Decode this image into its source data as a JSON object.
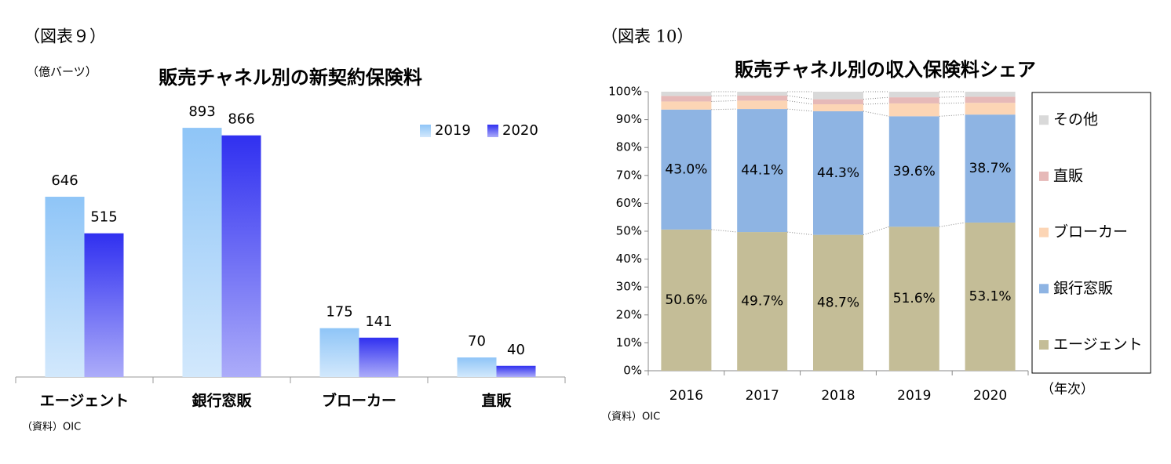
{
  "chart_data": [
    {
      "type": "bar",
      "label": "（図表９）",
      "title": "販売チャネル別の新契約保険料",
      "unit": "（億バーツ）",
      "source": "（資料）OIC",
      "categories": [
        "エージェント",
        "銀行窓販",
        "ブローカー",
        "直販"
      ],
      "series": [
        {
          "name": "2019",
          "color": "#8fc5f7",
          "values": [
            646,
            893,
            175,
            70
          ]
        },
        {
          "name": "2020",
          "color": "#3030f0",
          "values": [
            515,
            866,
            141,
            40
          ]
        }
      ],
      "ylim": [
        0,
        1000
      ]
    },
    {
      "type": "stacked-bar",
      "label": "（図表 10）",
      "title": "販売チャネル別の収入保険料シェア",
      "source": "（資料）OIC",
      "xlabel": "（年次）",
      "categories": [
        "2016",
        "2017",
        "2018",
        "2019",
        "2020"
      ],
      "series": [
        {
          "name": "エージェント",
          "color": "#c4bd97",
          "values": [
            50.6,
            49.7,
            48.7,
            51.6,
            53.1
          ],
          "value_labels": [
            "50.6%",
            "49.7%",
            "48.7%",
            "51.6%",
            "53.1%"
          ]
        },
        {
          "name": "銀行窓販",
          "color": "#8eb4e3",
          "values": [
            43.0,
            44.1,
            44.3,
            39.6,
            38.7
          ],
          "value_labels": [
            "43.0%",
            "44.1%",
            "44.3%",
            "39.6%",
            "38.7%"
          ]
        },
        {
          "name": "ブローカー",
          "color": "#fcd5b5",
          "values": [
            2.9,
            3.0,
            2.5,
            4.6,
            4.2
          ]
        },
        {
          "name": "直販",
          "color": "#e6b9b8",
          "values": [
            2.0,
            1.8,
            1.8,
            2.2,
            2.2
          ]
        },
        {
          "name": "その他",
          "color": "#d9d9d9",
          "values": [
            1.5,
            1.4,
            2.7,
            2.0,
            1.8
          ]
        }
      ],
      "ylim": [
        0,
        100
      ],
      "yticks": [
        {
          "value": 0,
          "label": "0%"
        },
        {
          "value": 10,
          "label": "10%"
        },
        {
          "value": 20,
          "label": "20%"
        },
        {
          "value": 30,
          "label": "30%"
        },
        {
          "value": 40,
          "label": "40%"
        },
        {
          "value": 50,
          "label": "50%"
        },
        {
          "value": 60,
          "label": "60%"
        },
        {
          "value": 70,
          "label": "70%"
        },
        {
          "value": 80,
          "label": "80%"
        },
        {
          "value": 90,
          "label": "90%"
        },
        {
          "value": 100,
          "label": "100%"
        }
      ]
    }
  ]
}
